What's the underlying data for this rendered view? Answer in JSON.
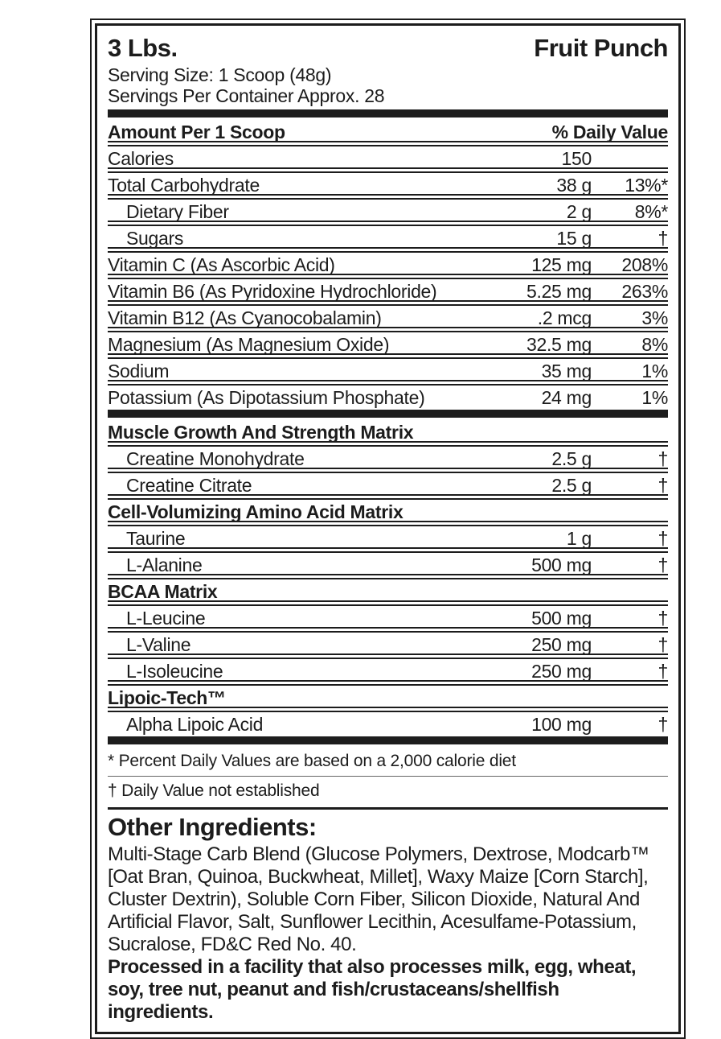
{
  "colors": {
    "text": "#1c1c1c",
    "bar": "#1d1d1d",
    "background": "#ffffff"
  },
  "header": {
    "size": "3 Lbs.",
    "flavor": "Fruit Punch",
    "serving_size": "Serving Size: 1 Scoop (48g)",
    "servings_per_container": "Servings Per Container Approx. 28"
  },
  "panel": {
    "amount_header": "Amount Per 1 Scoop",
    "dv_header": "% Daily Value",
    "rows": [
      {
        "label": "Calories",
        "amount": "150",
        "dv": ""
      },
      {
        "label": "Total Carbohydrate",
        "amount": "38 g",
        "dv": "13%*"
      },
      {
        "label": "Dietary Fiber",
        "amount": "2 g",
        "dv": "8%*"
      },
      {
        "label": "Sugars",
        "amount": "15 g",
        "dv": "†"
      },
      {
        "label": "Vitamin C (As Ascorbic Acid)",
        "amount": "125 mg",
        "dv": "208%"
      },
      {
        "label": "Vitamin B6 (As Pyridoxine Hydrochloride)",
        "amount": "5.25 mg",
        "dv": "263%"
      },
      {
        "label": "Vitamin B12 (As Cyanocobalamin)",
        "amount": ".2 mcg",
        "dv": "3%"
      },
      {
        "label": "Magnesium (As Magnesium Oxide)",
        "amount": "32.5 mg",
        "dv": "8%"
      },
      {
        "label": "Sodium",
        "amount": "35 mg",
        "dv": "1%"
      },
      {
        "label": "Potassium (As Dipotassium Phosphate)",
        "amount": "24 mg",
        "dv": "1%"
      }
    ]
  },
  "matrices": [
    {
      "title": "Muscle Growth And Strength Matrix",
      "rows": [
        {
          "label": "Creatine Monohydrate",
          "amount": "2.5 g",
          "dv": "†"
        },
        {
          "label": "Creatine Citrate",
          "amount": "2.5 g",
          "dv": "†"
        }
      ]
    },
    {
      "title": "Cell-Volumizing Amino Acid Matrix",
      "rows": [
        {
          "label": "Taurine",
          "amount": "1 g",
          "dv": "†"
        },
        {
          "label": "L-Alanine",
          "amount": "500 mg",
          "dv": "†"
        }
      ]
    },
    {
      "title": "BCAA Matrix",
      "rows": [
        {
          "label": "L-Leucine",
          "amount": "500 mg",
          "dv": "†"
        },
        {
          "label": "L-Valine",
          "amount": "250 mg",
          "dv": "†"
        },
        {
          "label": "L-Isoleucine",
          "amount": "250 mg",
          "dv": "†"
        }
      ]
    },
    {
      "title": "Lipoic-Tech™",
      "rows": [
        {
          "label": "Alpha Lipoic Acid",
          "amount": "100 mg",
          "dv": "†"
        }
      ]
    }
  ],
  "footnotes": {
    "percent_dv": "* Percent Daily Values are based on a 2,000 calorie diet",
    "not_established": "† Daily Value not established"
  },
  "other_ingredients": {
    "heading": "Other Ingredients:",
    "body": "Multi-Stage Carb Blend (Glucose Polymers, Dextrose, Modcarb™ [Oat Bran, Quinoa, Buckwheat, Millet], Waxy Maize [Corn Starch], Cluster Dextrin), Soluble Corn Fiber, Silicon Dioxide, Natural And Artificial Flavor, Salt, Sunflower Lecithin, Acesulfame-Potassium, Sucralose, FD&C Red No. 40.",
    "allergen": "Processed in a facility that also processes milk, egg, wheat, soy, tree nut, peanut and fish/crustaceans/shellfish ingredients."
  }
}
